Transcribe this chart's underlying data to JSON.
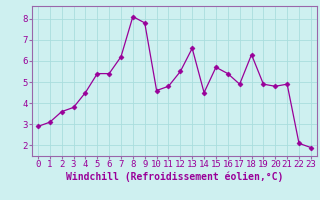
{
  "x": [
    0,
    1,
    2,
    3,
    4,
    5,
    6,
    7,
    8,
    9,
    10,
    11,
    12,
    13,
    14,
    15,
    16,
    17,
    18,
    19,
    20,
    21,
    22,
    23
  ],
  "y": [
    2.9,
    3.1,
    3.6,
    3.8,
    4.5,
    5.4,
    5.4,
    6.2,
    8.1,
    7.8,
    4.6,
    4.8,
    5.5,
    6.6,
    4.5,
    5.7,
    5.4,
    4.9,
    6.3,
    4.9,
    4.8,
    4.9,
    2.1,
    1.9
  ],
  "line_color": "#990099",
  "marker": "D",
  "marker_size": 2.5,
  "bg_color": "#cef0f0",
  "grid_color": "#aadddd",
  "xlabel": "Windchill (Refroidissement éolien,°C)",
  "tick_color": "#990099",
  "ylabel_ticks": [
    2,
    3,
    4,
    5,
    6,
    7,
    8
  ],
  "ylim": [
    1.5,
    8.6
  ],
  "xlim": [
    -0.5,
    23.5
  ],
  "tick_fontsize": 6.5,
  "label_fontsize": 7,
  "spine_color": "#9966aa"
}
